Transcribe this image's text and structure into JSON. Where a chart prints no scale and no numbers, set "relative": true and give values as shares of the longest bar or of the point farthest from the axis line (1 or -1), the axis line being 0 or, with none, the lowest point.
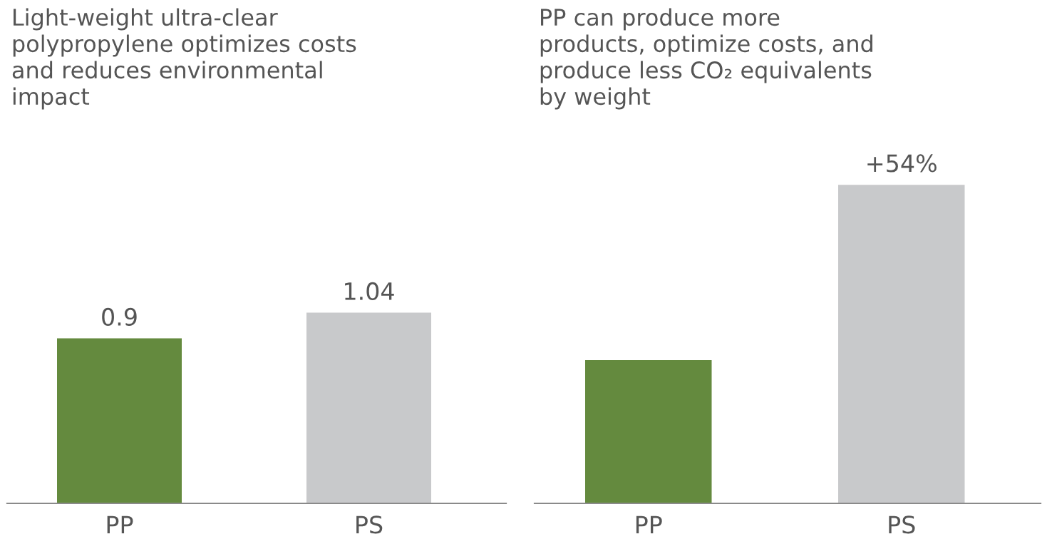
{
  "chart_data": [
    {
      "type": "bar",
      "title": "Light-weight ultra-clear\npolypropylene optimizes costs\nand reduces environmental\nimpact",
      "categories": [
        "PP",
        "PS"
      ],
      "values": [
        0.9,
        1.04
      ],
      "colors": [
        "#648a3e",
        "#c8c9cb"
      ],
      "data_labels": true,
      "grid": false,
      "legend": false
    },
    {
      "type": "bar",
      "title": "PP can produce more\nproducts, optimize costs, and\nproduce less CO₂ equivalents\nby weight",
      "categories": [
        "PP",
        "PS"
      ],
      "values": [
        0.45,
        1
      ],
      "colors": [
        "#648a3e",
        "#c8c9cb"
      ],
      "relative": true,
      "annotations": [
        {
          "text": "+54%",
          "x": "PS",
          "y": 1
        }
      ],
      "grid": false,
      "legend": false
    }
  ]
}
